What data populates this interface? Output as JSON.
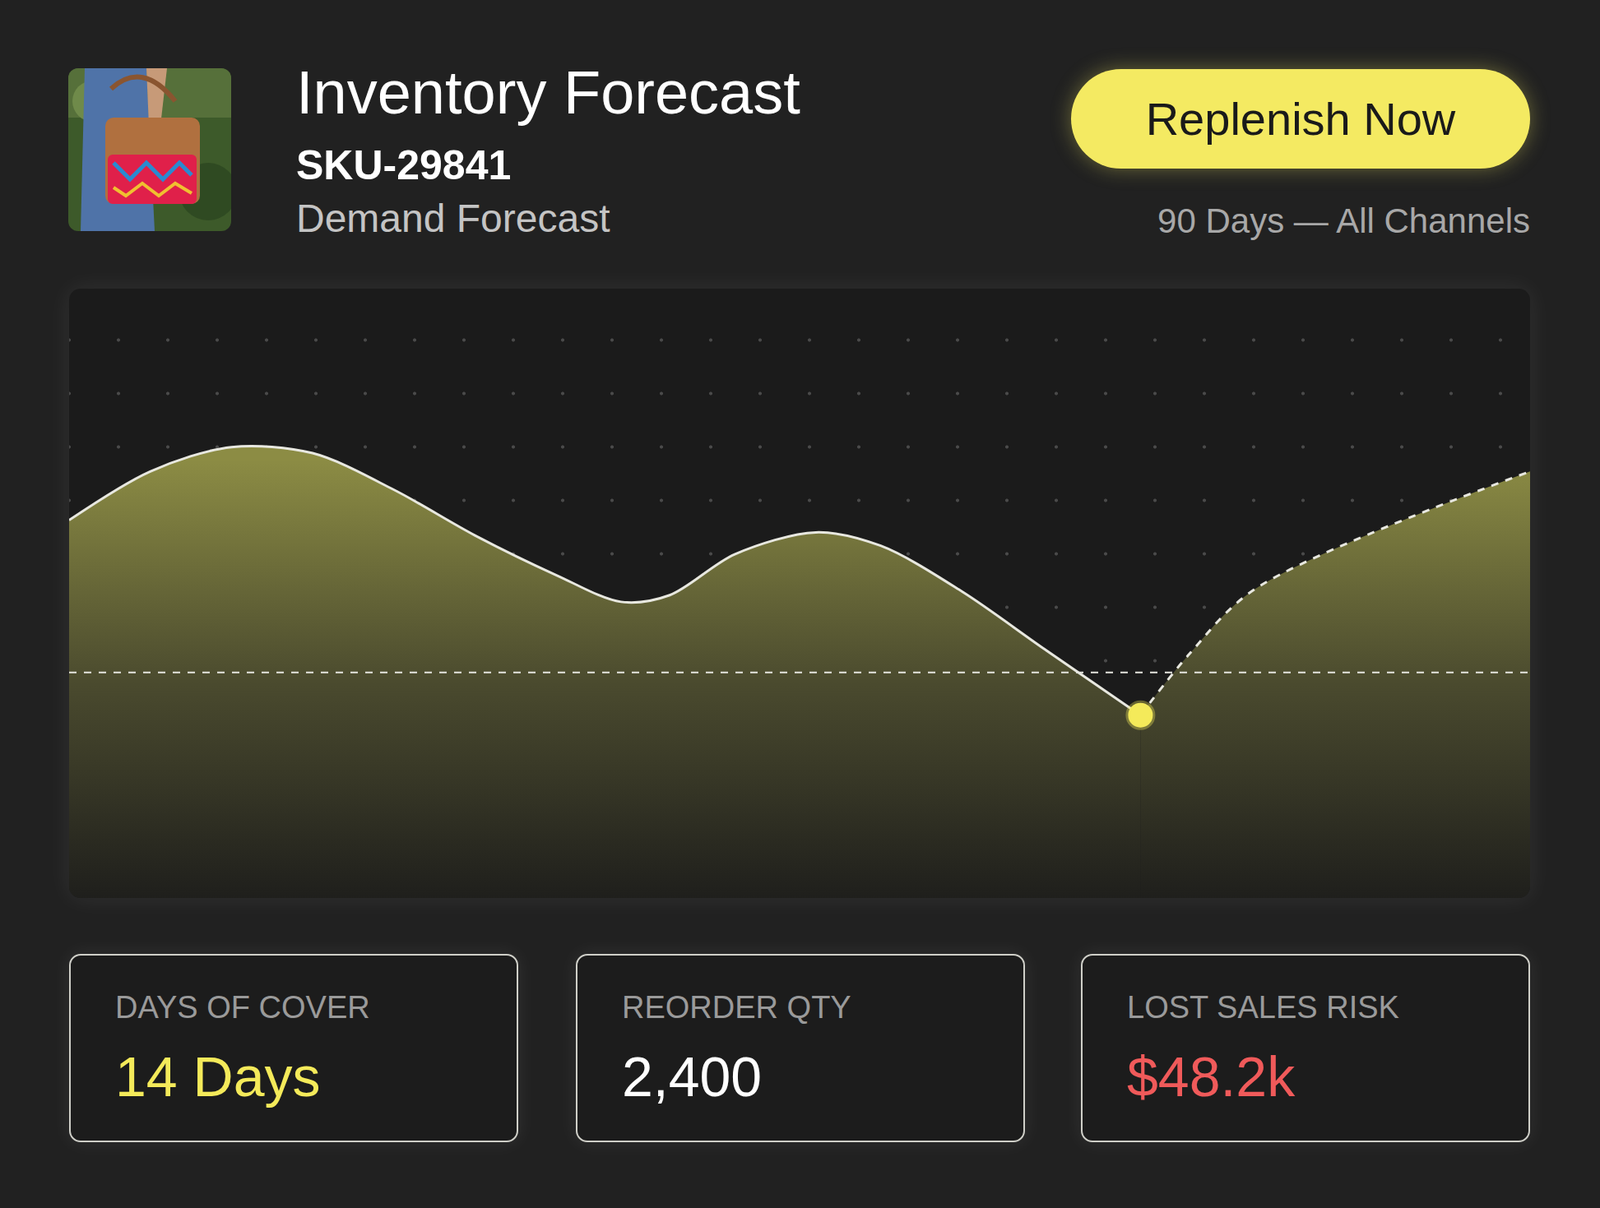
{
  "header": {
    "title": "Inventory Forecast",
    "sku": "SKU-29841",
    "subtitle": "Demand Forecast",
    "button": "Replenish Now",
    "period": "90 Days — All Channels"
  },
  "chart_data": {
    "type": "area",
    "tick_labels": false,
    "grid": false,
    "xlim": [
      0,
      90
    ],
    "ylim": [
      0,
      100
    ],
    "series": [
      {
        "type": "area",
        "color": "#8c8c44",
        "line_style": "solid",
        "x": [
          0,
          5,
          10,
          15,
          20,
          25,
          30,
          34,
          37,
          41,
          46,
          50,
          55,
          60,
          66
        ],
        "values": [
          62,
          70,
          74,
          73,
          67,
          59.5,
          53,
          48.6,
          49.7,
          56.4,
          60,
          57.8,
          50.3,
          41,
          30
        ]
      },
      {
        "type": "area",
        "color": "#8c8c44",
        "line_style": "dashed",
        "x": [
          66,
          69,
          73,
          90
        ],
        "values": [
          30,
          40,
          50.6,
          70
        ]
      },
      {
        "type": "line",
        "color": "#e6e6e0",
        "line_style": "dashed",
        "x": [
          0,
          90
        ],
        "values": [
          37,
          37
        ]
      },
      {
        "type": "scatter",
        "color": "#f4ea5a",
        "marker": "circle",
        "x": [
          66
        ],
        "values": [
          30
        ]
      }
    ]
  },
  "stats": [
    {
      "label": "DAYS OF COVER",
      "value": "14 Days",
      "color": "#f4ea5a"
    },
    {
      "label": "REORDER QTY",
      "value": "2,400",
      "color": "#ffffff"
    },
    {
      "label": "LOST SALES RISK",
      "value": "$48.2k",
      "color": "#f05a5a"
    }
  ]
}
